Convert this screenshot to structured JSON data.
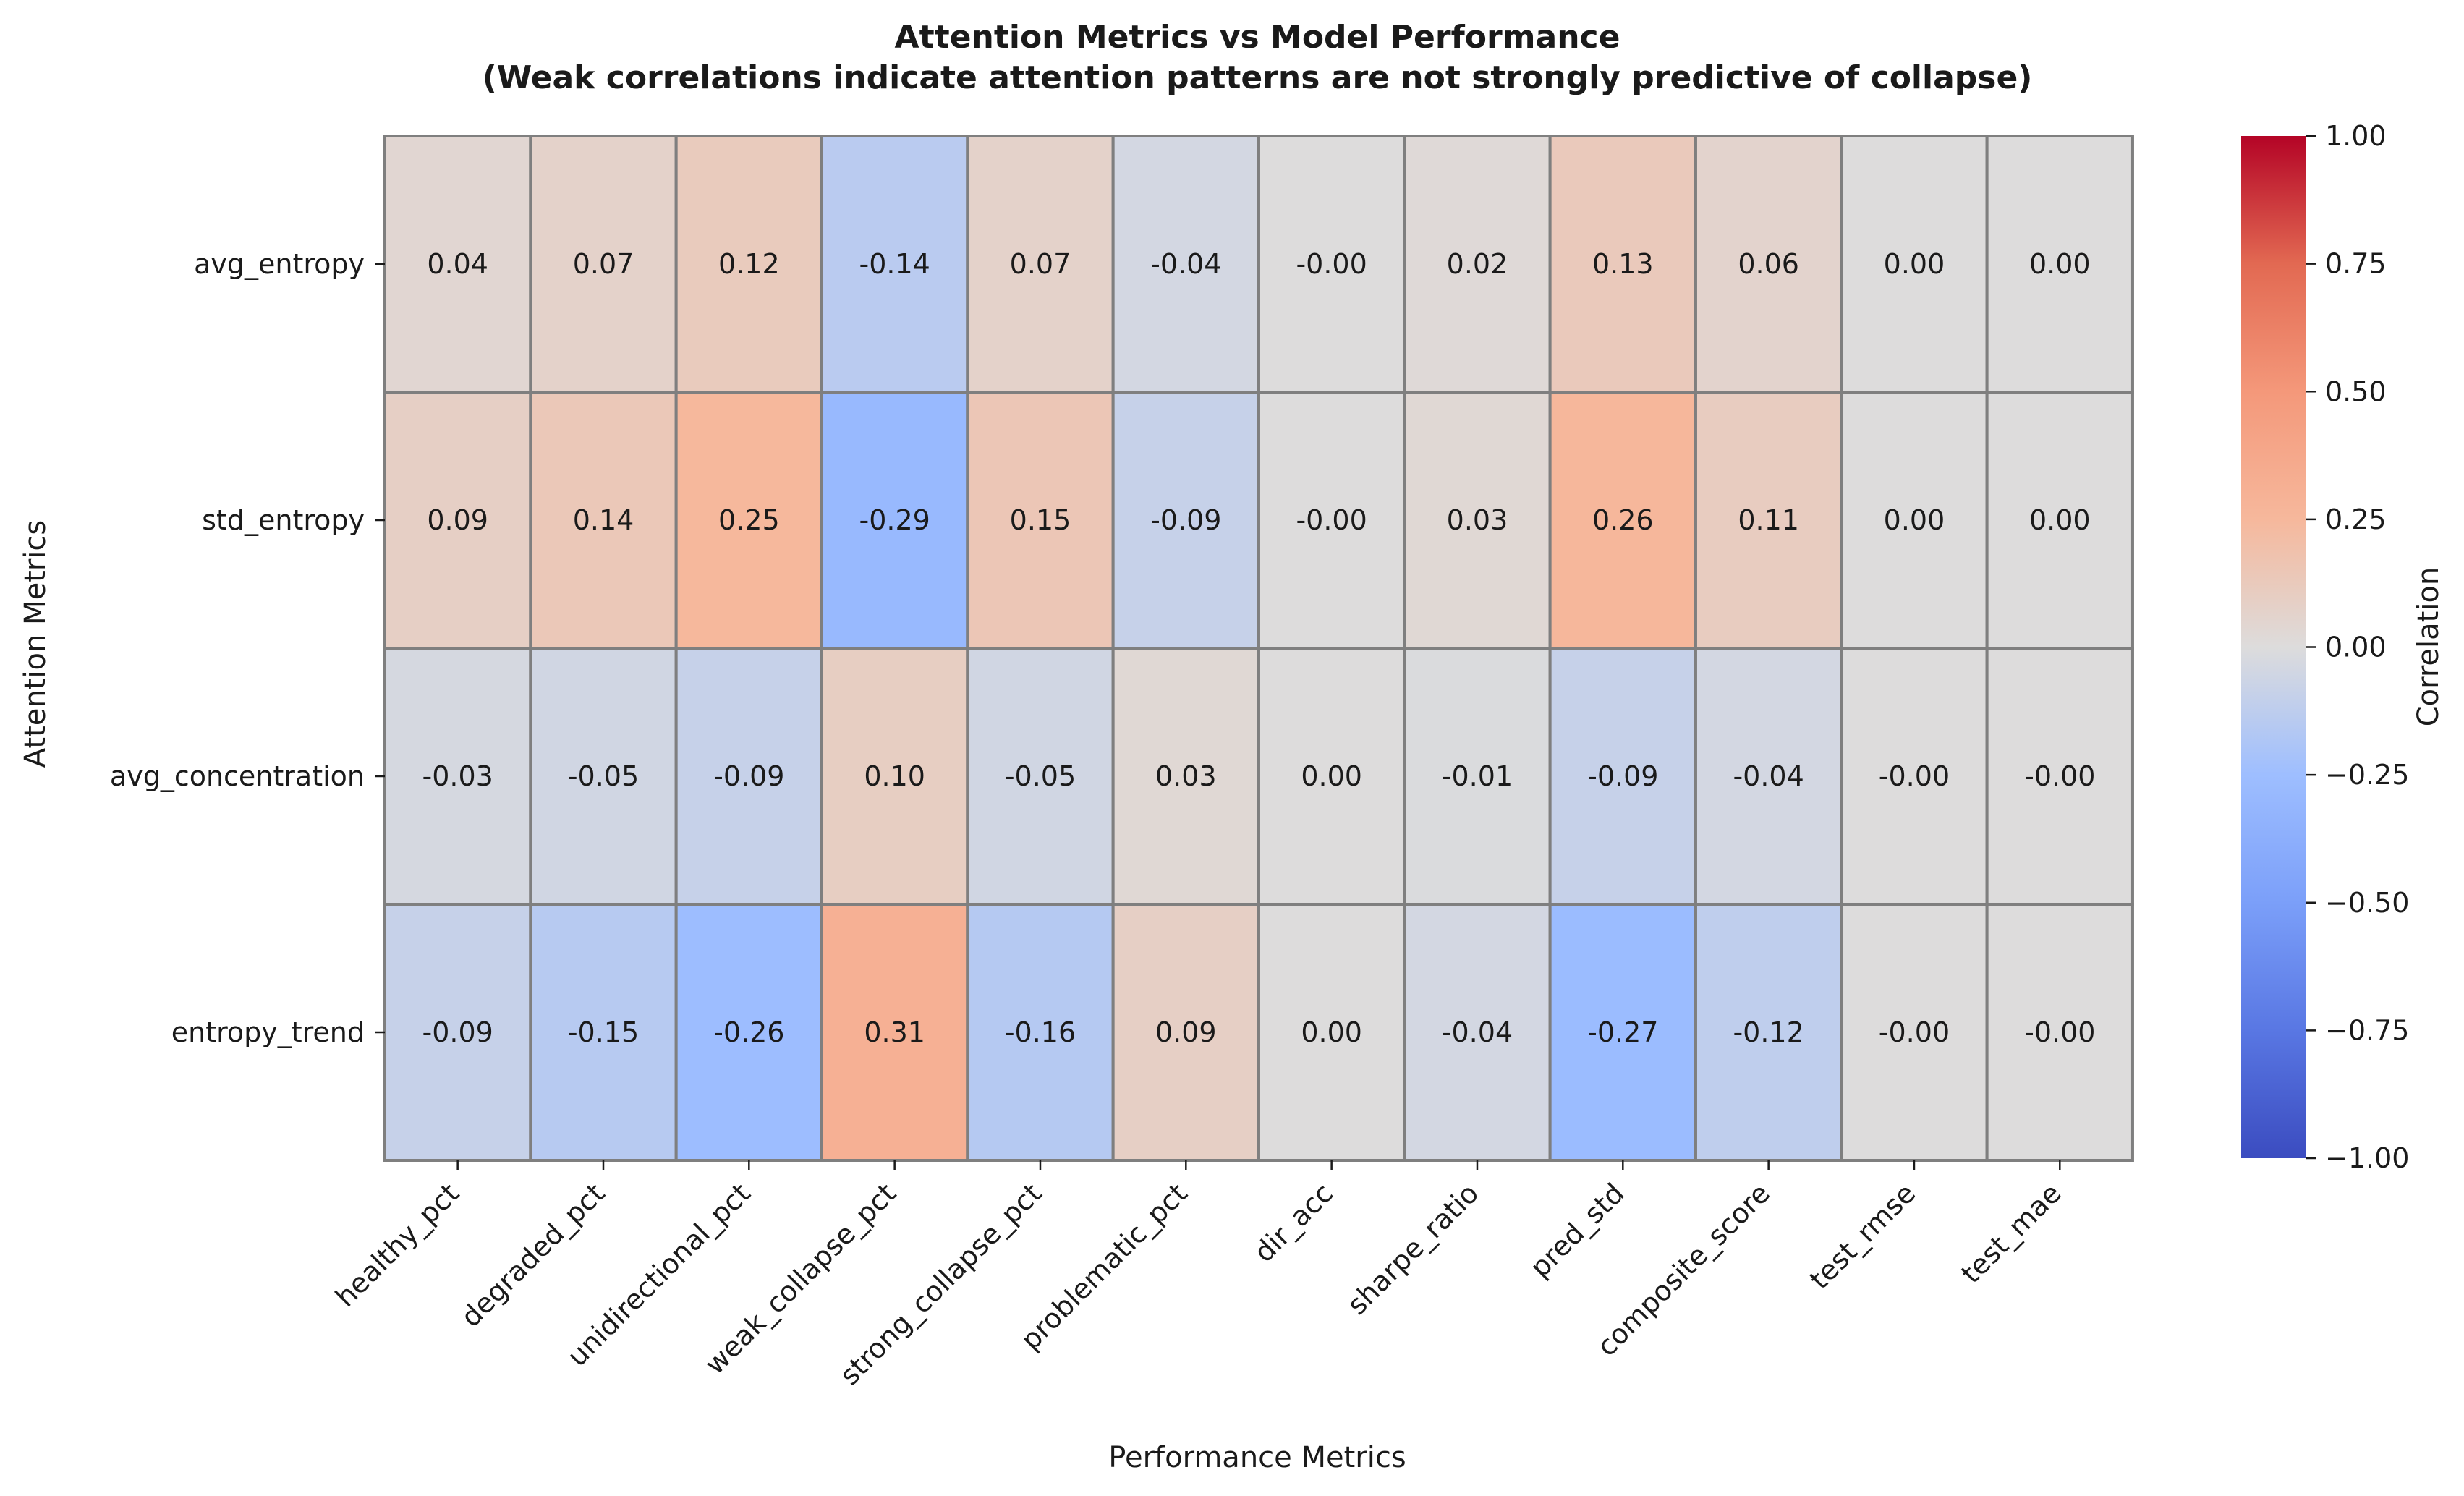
{
  "chart_data": {
    "type": "heatmap",
    "title": "Attention Metrics vs Model Performance",
    "subtitle": "(Weak correlations indicate attention patterns are not strongly predictive of collapse)",
    "xlabel": "Performance Metrics",
    "ylabel": "Attention Metrics",
    "colorbar_label": "Correlation",
    "colormap": "coolwarm",
    "vmin": -1.0,
    "vmax": 1.0,
    "colorbar_ticks": [
      "1.00",
      "0.75",
      "0.50",
      "0.25",
      "0.00",
      "−0.25",
      "−0.50",
      "−0.75",
      "−1.00"
    ],
    "colorbar_tick_values": [
      1.0,
      0.75,
      0.5,
      0.25,
      0.0,
      -0.25,
      -0.5,
      -0.75,
      -1.0
    ],
    "columns": [
      "healthy_pct",
      "degraded_pct",
      "unidirectional_pct",
      "weak_collapse_pct",
      "strong_collapse_pct",
      "problematic_pct",
      "dir_acc",
      "sharpe_ratio",
      "pred_std",
      "composite_score",
      "test_rmse",
      "test_mae"
    ],
    "rows": [
      "avg_entropy",
      "std_entropy",
      "avg_concentration",
      "entropy_trend"
    ],
    "values": [
      [
        0.04,
        0.07,
        0.12,
        -0.14,
        0.07,
        -0.04,
        -0.0,
        0.02,
        0.13,
        0.06,
        0.0,
        0.0
      ],
      [
        0.09,
        0.14,
        0.25,
        -0.29,
        0.15,
        -0.09,
        -0.0,
        0.03,
        0.26,
        0.11,
        0.0,
        0.0
      ],
      [
        -0.03,
        -0.05,
        -0.09,
        0.1,
        -0.05,
        0.03,
        0.0,
        -0.01,
        -0.09,
        -0.04,
        -0.0,
        -0.0
      ],
      [
        -0.09,
        -0.15,
        -0.26,
        0.31,
        -0.16,
        0.09,
        0.0,
        -0.04,
        -0.27,
        -0.12,
        -0.0,
        -0.0
      ]
    ],
    "labels": [
      [
        "0.04",
        "0.07",
        "0.12",
        "-0.14",
        "0.07",
        "-0.04",
        "-0.00",
        "0.02",
        "0.13",
        "0.06",
        "0.00",
        "0.00"
      ],
      [
        "0.09",
        "0.14",
        "0.25",
        "-0.29",
        "0.15",
        "-0.09",
        "-0.00",
        "0.03",
        "0.26",
        "0.11",
        "0.00",
        "0.00"
      ],
      [
        "-0.03",
        "-0.05",
        "-0.09",
        "0.10",
        "-0.05",
        "0.03",
        "0.00",
        "-0.01",
        "-0.09",
        "-0.04",
        "-0.00",
        "-0.00"
      ],
      [
        "-0.09",
        "-0.15",
        "-0.26",
        "0.31",
        "-0.16",
        "0.09",
        "0.00",
        "-0.04",
        "-0.27",
        "-0.12",
        "-0.00",
        "-0.00"
      ]
    ]
  }
}
